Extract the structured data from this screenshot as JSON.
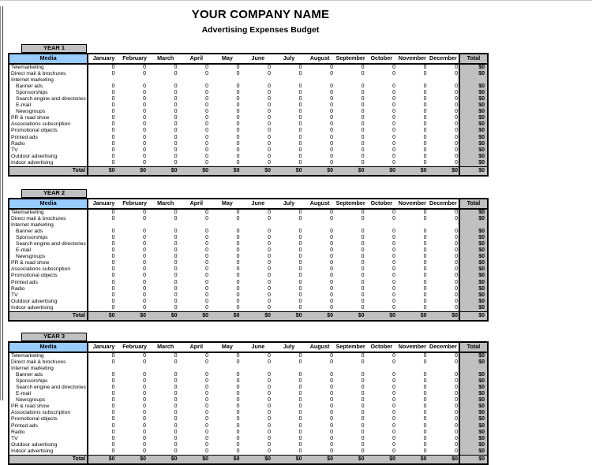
{
  "page": {
    "title": "YOUR COMPANY NAME",
    "subtitle": "Advertising Expenses Budget"
  },
  "labels": {
    "media": "Media",
    "total_column": "Total",
    "total_row": "Total"
  },
  "months": [
    "January",
    "February",
    "March",
    "April",
    "May",
    "June",
    "July",
    "August",
    "September",
    "October",
    "November",
    "December"
  ],
  "tables": [
    {
      "year": "YEAR 1"
    },
    {
      "year": "YEAR 2"
    },
    {
      "year": "YEAR 3"
    }
  ],
  "rows": [
    {
      "label": "Telemarketing",
      "indent": 0,
      "values": true
    },
    {
      "label": "Direct mail & brochures",
      "indent": 0,
      "values": true
    },
    {
      "label": "Internet marketing",
      "indent": 0,
      "values": false
    },
    {
      "label": "Banner ads",
      "indent": 1,
      "values": true
    },
    {
      "label": "Sponsorships",
      "indent": 1,
      "values": true
    },
    {
      "label": "Search engine and directories",
      "indent": 1,
      "values": true
    },
    {
      "label": "E-mail",
      "indent": 1,
      "values": true
    },
    {
      "label": "Newsgroups",
      "indent": 1,
      "values": true
    },
    {
      "label": "PR & road show",
      "indent": 0,
      "values": true
    },
    {
      "label": "Associations subscription",
      "indent": 0,
      "values": true
    },
    {
      "label": "Promotional objects",
      "indent": 0,
      "values": true
    },
    {
      "label": "Printed ads",
      "indent": 0,
      "values": true
    },
    {
      "label": "Radio",
      "indent": 0,
      "values": true
    },
    {
      "label": "TV",
      "indent": 0,
      "values": true
    },
    {
      "label": "Outdoor advertising",
      "indent": 0,
      "values": true
    },
    {
      "label": "Indoor advertising",
      "indent": 0,
      "values": true
    }
  ],
  "cells": {
    "month_value": "0",
    "row_total": "$0",
    "column_total": "$0",
    "grand_total": "$0"
  },
  "colors": {
    "year_header_bg": "#c0c0c0",
    "media_header_bg": "#99ccff",
    "total_bg": "#c0c0c0",
    "border": "#000000",
    "page_bg": "#ffffff"
  }
}
